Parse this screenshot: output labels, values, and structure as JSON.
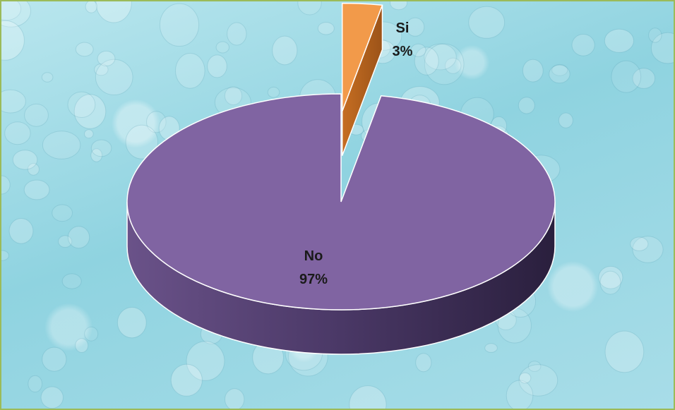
{
  "chart_data": {
    "type": "pie",
    "slices": [
      {
        "label": "Si",
        "percent_label": "3%",
        "value": 3,
        "color": "#f29a4a"
      },
      {
        "label": "No",
        "percent_label": "97%",
        "value": 97,
        "color": "#8064a2"
      }
    ]
  }
}
